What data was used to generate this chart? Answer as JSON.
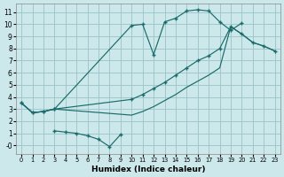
{
  "xlabel": "Humidex (Indice chaleur)",
  "background_color": "#cce8ea",
  "grid_color": "#a0c8cc",
  "line_color": "#1a6b6b",
  "xlim": [
    -0.5,
    23.5
  ],
  "ylim": [
    -0.7,
    11.7
  ],
  "xticks": [
    0,
    1,
    2,
    3,
    4,
    5,
    6,
    7,
    8,
    9,
    10,
    11,
    12,
    13,
    14,
    15,
    16,
    17,
    18,
    19,
    20,
    21,
    22,
    23
  ],
  "yticks": [
    0,
    1,
    2,
    3,
    4,
    5,
    6,
    7,
    8,
    9,
    10,
    11
  ],
  "curve1_x": [
    0,
    1,
    2,
    3,
    10,
    11,
    12,
    13,
    14,
    15,
    16,
    17,
    18,
    19,
    20
  ],
  "curve1_y": [
    3.5,
    2.7,
    2.8,
    3.0,
    9.9,
    10.0,
    7.5,
    10.2,
    10.5,
    11.1,
    11.2,
    11.1,
    10.2,
    9.5,
    10.1
  ],
  "curve2_x": [
    0,
    1,
    2,
    3,
    10,
    11,
    12,
    13,
    14,
    15,
    16,
    17,
    18,
    19,
    20,
    21,
    22,
    23
  ],
  "curve2_y": [
    3.5,
    2.7,
    2.8,
    3.0,
    3.8,
    4.2,
    4.7,
    5.2,
    5.8,
    6.4,
    7.0,
    7.4,
    8.0,
    9.8,
    9.2,
    8.5,
    8.2,
    7.8
  ],
  "curve3_x": [
    0,
    1,
    2,
    3,
    10,
    11,
    12,
    13,
    14,
    15,
    16,
    17,
    18,
    19,
    20,
    21,
    22,
    23
  ],
  "curve3_y": [
    3.5,
    2.7,
    2.8,
    3.0,
    2.5,
    2.8,
    3.2,
    3.7,
    4.2,
    4.8,
    5.3,
    5.8,
    6.4,
    9.8,
    9.2,
    8.5,
    8.2,
    7.8
  ],
  "curve4_x": [
    3,
    4,
    5,
    6,
    7,
    8,
    9
  ],
  "curve4_y": [
    1.2,
    1.1,
    1.0,
    0.8,
    0.5,
    -0.1,
    0.9
  ]
}
